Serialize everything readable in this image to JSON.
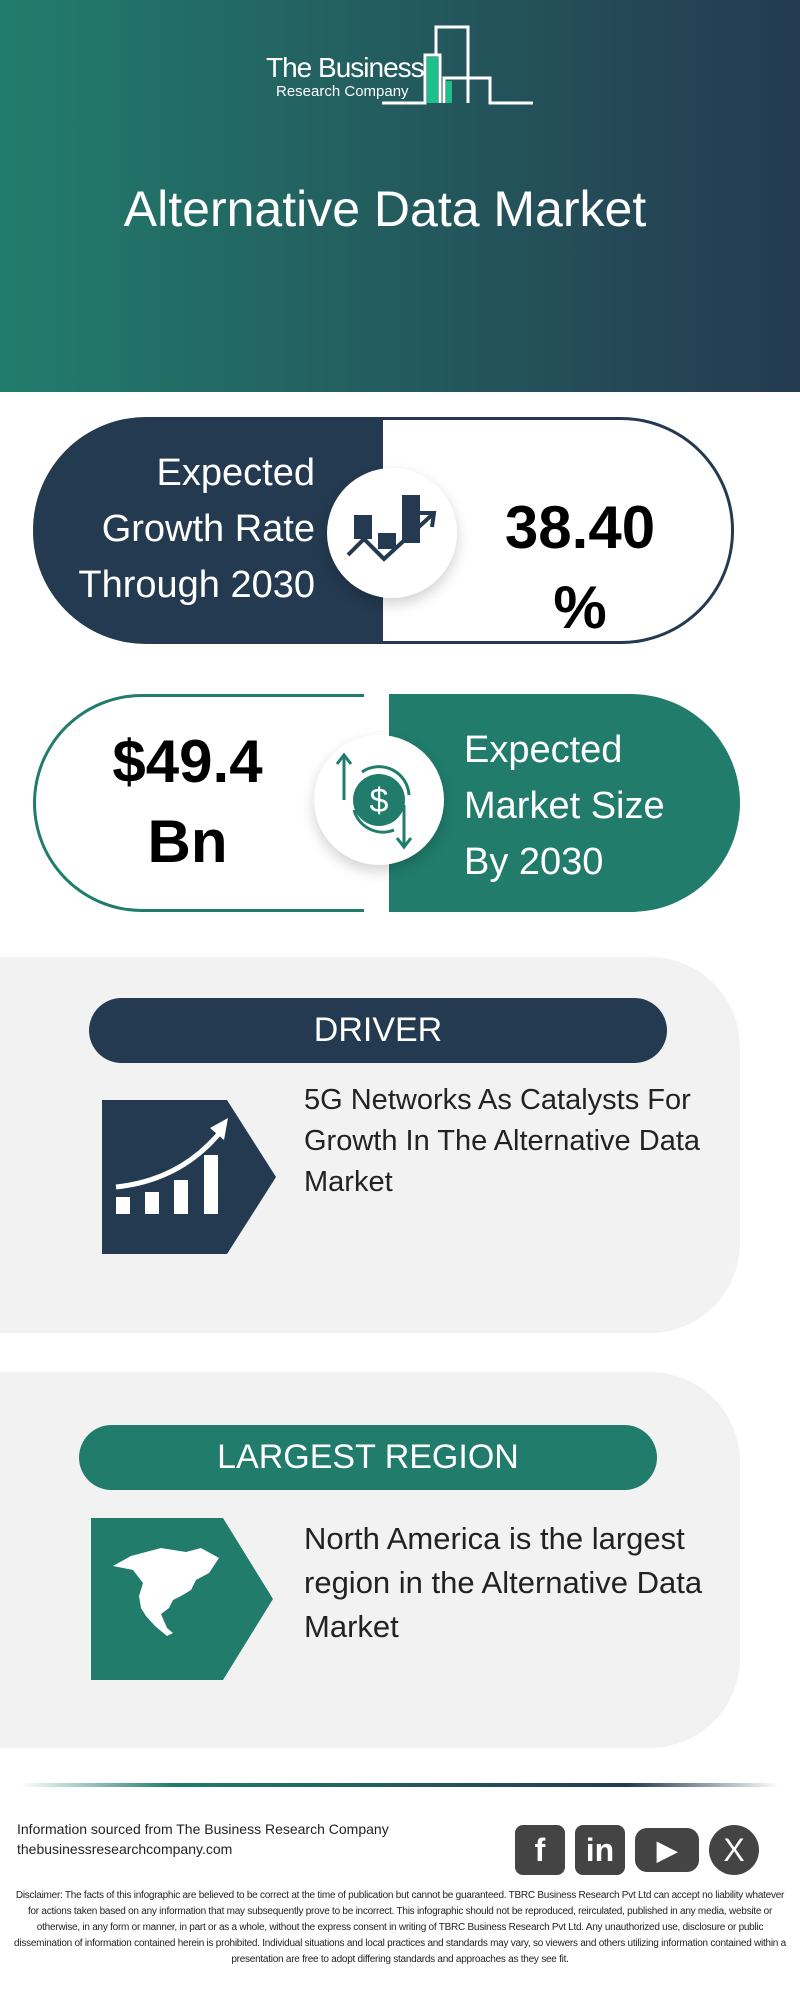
{
  "header": {
    "logo_line1": "The Business",
    "logo_line2": "Research Company",
    "title": "Alternative Data Market"
  },
  "growth": {
    "label": "Expected Growth Rate Through 2030",
    "value": "38.40",
    "unit": "%",
    "icon": "growth-chart-icon"
  },
  "market": {
    "value": "$49.4",
    "unit": "Bn",
    "label": "Expected Market Size By 2030",
    "icon": "dollar-exchange-icon"
  },
  "driver": {
    "heading": "DRIVER",
    "text": "5G Networks As Catalysts For Growth In The Alternative Data Market",
    "icon": "rising-bars-icon"
  },
  "region": {
    "heading": "LARGEST REGION",
    "text": "North America is the largest region in the Alternative Data Market",
    "icon": "north-america-map-icon"
  },
  "footer": {
    "source": "Information sourced from The Business Research Company",
    "website": "thebusinessresearchcompany.com",
    "social": [
      {
        "name": "facebook",
        "glyph": "f"
      },
      {
        "name": "linkedin",
        "glyph": "in"
      },
      {
        "name": "youtube",
        "glyph": "▶"
      },
      {
        "name": "x",
        "glyph": "X"
      }
    ],
    "disclaimer": "Disclaimer: The facts of this infographic are believed to be correct at the time of publication but cannot be guaranteed. TBRC Business Research Pvt Ltd can accept no liability whatever for actions taken based on any information that may subsequently prove to be incorrect. This infographic should not be reproduced, reirculated, published in any media, website or otherwise, in any form or manner, in part or as a whole, without the express consent in writing of TBRC Business Research Pvt Ltd. Any unauthorized use, disclosure or public dissemination of information contained herein is prohibited. Individual situations and local practices and standards may vary, so viewers and others utilizing information contained within a presentation are free to adopt differing standards and approaches as they see fit."
  },
  "colors": {
    "navy": "#243a50",
    "teal": "#217c6c",
    "panel": "#f2f2f2"
  }
}
